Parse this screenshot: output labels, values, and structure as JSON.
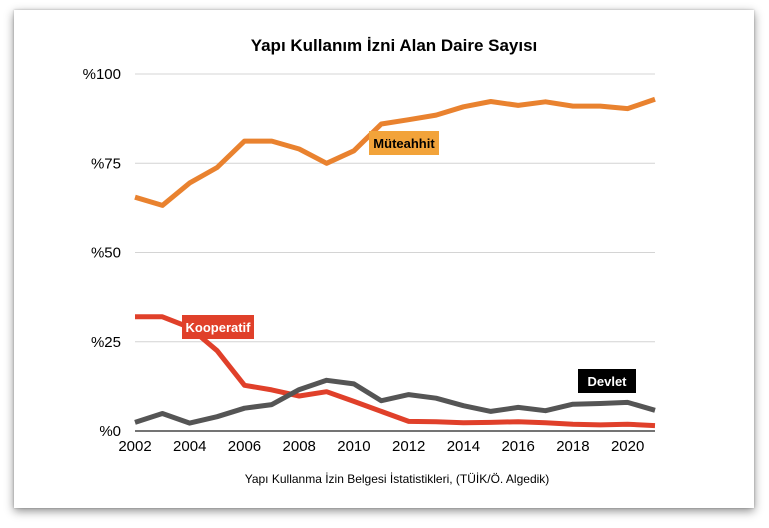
{
  "chart_data": {
    "type": "line",
    "title": "Yapı Kullanım İzni Alan Daire Sayısı",
    "caption": "Yapı Kullanma İzin Belgesi İstatistikleri, (TÜİK/Ö. Algedik)",
    "xlabel": "",
    "ylabel": "",
    "x": [
      2002,
      2003,
      2004,
      2005,
      2006,
      2007,
      2008,
      2009,
      2010,
      2011,
      2012,
      2013,
      2014,
      2015,
      2016,
      2017,
      2018,
      2019,
      2020,
      2021
    ],
    "xlim": [
      2002,
      2021
    ],
    "ylim": [
      0,
      100
    ],
    "x_ticks": [
      2002,
      2004,
      2006,
      2008,
      2010,
      2012,
      2014,
      2016,
      2018,
      2020
    ],
    "y_ticks": [
      0,
      25,
      50,
      75,
      100
    ],
    "y_tick_labels": [
      "%0",
      "%25",
      "%50",
      "%75",
      "%100"
    ],
    "grid": "horizontal",
    "legend": "inline labels",
    "series": [
      {
        "name": "Müteahhit",
        "color": "#E9822F",
        "label_bg": "#F2A33A",
        "label_fg": "#000000",
        "values": [
          65.5,
          63.2,
          69.5,
          73.8,
          81.2,
          81.2,
          79.0,
          75.0,
          78.5,
          86.0,
          87.2,
          88.5,
          90.8,
          92.3,
          91.2,
          92.2,
          91.0,
          91.0,
          90.3,
          92.9
        ]
      },
      {
        "name": "Kooperatif",
        "color": "#E0402A",
        "label_bg": "#E0402A",
        "label_fg": "#ffffff",
        "values": [
          32.0,
          32.0,
          29.0,
          22.5,
          12.8,
          11.5,
          9.8,
          11.0,
          8.3,
          5.5,
          2.7,
          2.6,
          2.3,
          2.4,
          2.6,
          2.3,
          1.9,
          1.7,
          1.9,
          1.5
        ]
      },
      {
        "name": "Devlet",
        "color": "#555555",
        "label_bg": "#000000",
        "label_fg": "#ffffff",
        "values": [
          2.4,
          4.9,
          2.2,
          4.0,
          6.4,
          7.4,
          11.6,
          14.2,
          13.2,
          8.5,
          10.2,
          9.2,
          7.1,
          5.5,
          6.6,
          5.7,
          7.5,
          7.7,
          8.0,
          5.8
        ]
      }
    ]
  }
}
